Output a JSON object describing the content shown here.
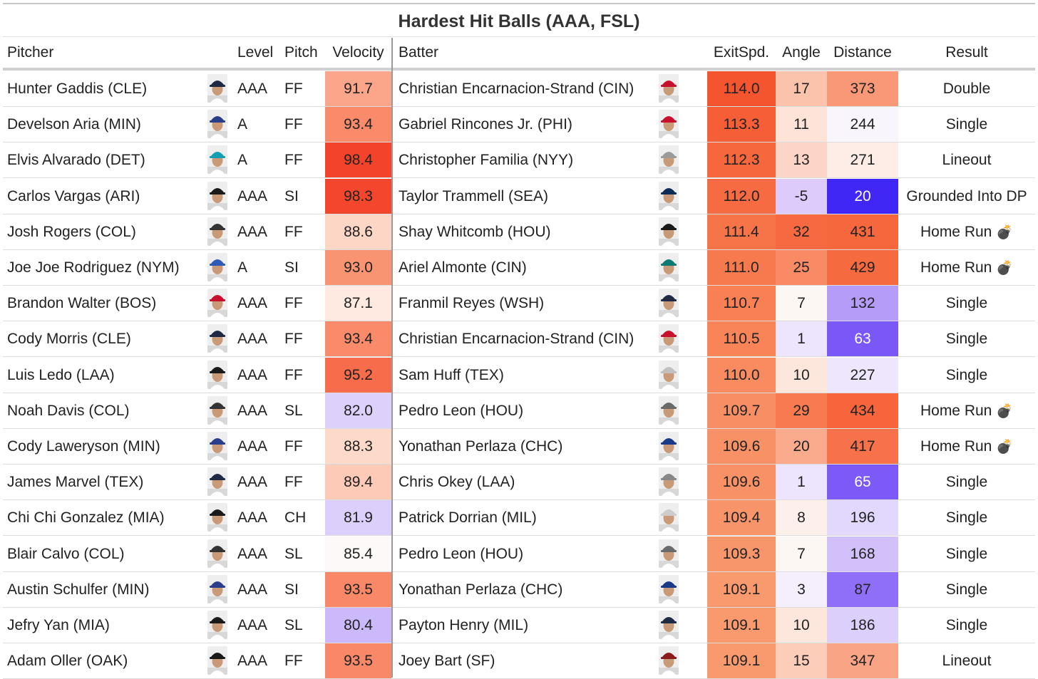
{
  "title": "Hardest Hit Balls (AAA, FSL)",
  "headers": {
    "pitcher": "Pitcher",
    "level": "Level",
    "pitch": "Pitch",
    "velocity": "Velocity",
    "batter": "Batter",
    "exitspd": "ExitSpd.",
    "angle": "Angle",
    "distance": "Distance",
    "result": "Result"
  },
  "colors": {
    "hot_max": "#f4442a",
    "cold_max": "#4127f5",
    "neutral": "#ffffff"
  },
  "rows": [
    {
      "pitcher": "Hunter Gaddis (CLE)",
      "level": "AAA",
      "pitch": "FF",
      "velocity": "91.7",
      "batter": "Christian Encarnacion-Strand (CIN)",
      "exitspd": "114.0",
      "angle": "17",
      "distance": "373",
      "result": "Double",
      "hr": false,
      "pcap": "#1e2a44",
      "bcap": "#c8102e",
      "velocity_color": "#fba68a",
      "exitspd_color": "#f4552e",
      "angle_color": "#fcc3ac",
      "distance_color": "#f99877",
      "distance_text": "#222"
    },
    {
      "pitcher": "Develson Aria (MIN)",
      "level": "A",
      "pitch": "FF",
      "velocity": "93.4",
      "batter": "Gabriel Rincones Jr. (PHI)",
      "exitspd": "113.3",
      "angle": "11",
      "distance": "244",
      "result": "Single",
      "hr": false,
      "pcap": "#2b3e8c",
      "bcap": "#c8102e",
      "velocity_color": "#f98a6a",
      "exitspd_color": "#f55e36",
      "angle_color": "#fde3d8",
      "distance_color": "#f8f6fc",
      "distance_text": "#222"
    },
    {
      "pitcher": "Elvis Alvarado (DET)",
      "level": "A",
      "pitch": "FF",
      "velocity": "98.4",
      "batter": "Christopher Familia (NYY)",
      "exitspd": "112.3",
      "angle": "13",
      "distance": "271",
      "result": "Lineout",
      "hr": false,
      "pcap": "#14a0b0",
      "bcap": "#9a9a9a",
      "velocity_color": "#f3442b",
      "exitspd_color": "#f6673e",
      "angle_color": "#fdd5c6",
      "distance_color": "#feede6",
      "distance_text": "#222"
    },
    {
      "pitcher": "Carlos Vargas (ARI)",
      "level": "AAA",
      "pitch": "SI",
      "velocity": "98.3",
      "batter": "Taylor Trammell (SEA)",
      "exitspd": "112.0",
      "angle": "-5",
      "distance": "20",
      "result": "Grounded Into DP",
      "hr": false,
      "pcap": "#1a1a1a",
      "bcap": "#0c2c56",
      "velocity_color": "#f4462c",
      "exitspd_color": "#f66b42",
      "angle_color": "#dccbfb",
      "distance_color": "#4127f5",
      "distance_text": "#ffffff"
    },
    {
      "pitcher": "Josh Rogers (COL)",
      "level": "AAA",
      "pitch": "FF",
      "velocity": "88.6",
      "batter": "Shay Whitcomb (HOU)",
      "exitspd": "111.4",
      "angle": "32",
      "distance": "431",
      "result": "Home Run",
      "hr": true,
      "pcap": "#333333",
      "bcap": "#1a1a1a",
      "velocity_color": "#fdd6c6",
      "exitspd_color": "#f77449",
      "angle_color": "#f76a41",
      "distance_color": "#f6673e",
      "distance_text": "#222"
    },
    {
      "pitcher": "Joe Joe Rodriguez (NYM)",
      "level": "A",
      "pitch": "SI",
      "velocity": "93.0",
      "batter": "Ariel Almonte (CIN)",
      "exitspd": "111.0",
      "angle": "25",
      "distance": "429",
      "result": "Home Run",
      "hr": true,
      "pcap": "#2c5cb8",
      "bcap": "#0d7a73",
      "velocity_color": "#f99473",
      "exitspd_color": "#f77a4e",
      "angle_color": "#f88b66",
      "distance_color": "#f66a40",
      "distance_text": "#222"
    },
    {
      "pitcher": "Brandon Walter (BOS)",
      "level": "AAA",
      "pitch": "FF",
      "velocity": "87.1",
      "batter": "Franmil Reyes (WSH)",
      "exitspd": "110.7",
      "angle": "7",
      "distance": "132",
      "result": "Single",
      "hr": false,
      "pcap": "#c8102e",
      "bcap": "#1f2a44",
      "velocity_color": "#feeae1",
      "exitspd_color": "#f88054",
      "angle_color": "#fdf7f4",
      "distance_color": "#b69cf9",
      "distance_text": "#222"
    },
    {
      "pitcher": "Cody Morris (CLE)",
      "level": "AAA",
      "pitch": "FF",
      "velocity": "93.4",
      "batter": "Christian Encarnacion-Strand (CIN)",
      "exitspd": "110.5",
      "angle": "1",
      "distance": "63",
      "result": "Single",
      "hr": false,
      "pcap": "#1e2a44",
      "bcap": "#c8102e",
      "velocity_color": "#f98a6a",
      "exitspd_color": "#f88458",
      "angle_color": "#ede4fd",
      "distance_color": "#7a58f7",
      "distance_text": "#ffffff"
    },
    {
      "pitcher": "Luis Ledo (LAA)",
      "level": "AAA",
      "pitch": "FF",
      "velocity": "95.2",
      "batter": "Sam Huff (TEX)",
      "exitspd": "110.0",
      "angle": "10",
      "distance": "227",
      "result": "Single",
      "hr": false,
      "pcap": "#1a1a1a",
      "bcap": "#c0c0c0",
      "velocity_color": "#f76c4a",
      "exitspd_color": "#f88c60",
      "angle_color": "#fde7dc",
      "distance_color": "#ede6fd",
      "distance_text": "#222"
    },
    {
      "pitcher": "Noah Davis (COL)",
      "level": "AAA",
      "pitch": "SL",
      "velocity": "82.0",
      "batter": "Pedro Leon (HOU)",
      "exitspd": "109.7",
      "angle": "29",
      "distance": "434",
      "result": "Home Run",
      "hr": true,
      "pcap": "#333333",
      "bcap": "#6b6b6b",
      "velocity_color": "#ddd0fb",
      "exitspd_color": "#f88f64",
      "angle_color": "#f77a50",
      "distance_color": "#f6653c",
      "distance_text": "#222"
    },
    {
      "pitcher": "Cody Laweryson (MIN)",
      "level": "AAA",
      "pitch": "FF",
      "velocity": "88.3",
      "batter": "Yonathan Perlaza (CHC)",
      "exitspd": "109.6",
      "angle": "20",
      "distance": "417",
      "result": "Home Run",
      "hr": true,
      "pcap": "#2b3e8c",
      "bcap": "#1b3a8a",
      "velocity_color": "#fdd9ca",
      "exitspd_color": "#f89166",
      "angle_color": "#faab8e",
      "distance_color": "#f7714a",
      "distance_text": "#222"
    },
    {
      "pitcher": "James Marvel (TEX)",
      "level": "AAA",
      "pitch": "FF",
      "velocity": "89.4",
      "batter": "Chris Okey (LAA)",
      "exitspd": "109.6",
      "angle": "1",
      "distance": "65",
      "result": "Single",
      "hr": false,
      "pcap": "#1f2a44",
      "bcap": "#888888",
      "velocity_color": "#fccab7",
      "exitspd_color": "#f89166",
      "angle_color": "#ede4fd",
      "distance_color": "#7c5af7",
      "distance_text": "#ffffff"
    },
    {
      "pitcher": "Chi Chi Gonzalez (MIA)",
      "level": "AAA",
      "pitch": "CH",
      "velocity": "81.9",
      "batter": "Patrick Dorrian (MIL)",
      "exitspd": "109.4",
      "angle": "8",
      "distance": "196",
      "result": "Single",
      "hr": false,
      "pcap": "#1a1a1a",
      "bcap": "#cccccc",
      "velocity_color": "#dccffb",
      "exitspd_color": "#f89469",
      "angle_color": "#fdf0ea",
      "distance_color": "#e2d7fc",
      "distance_text": "#222"
    },
    {
      "pitcher": "Blair Calvo (COL)",
      "level": "AAA",
      "pitch": "SL",
      "velocity": "85.4",
      "batter": "Pedro Leon (HOU)",
      "exitspd": "109.3",
      "angle": "7",
      "distance": "168",
      "result": "Single",
      "hr": false,
      "pcap": "#333333",
      "bcap": "#6b6b6b",
      "velocity_color": "#fdf9f8",
      "exitspd_color": "#f8966b",
      "angle_color": "#fdf7f4",
      "distance_color": "#d2c0fb",
      "distance_text": "#222"
    },
    {
      "pitcher": "Austin Schulfer (MIN)",
      "level": "AAA",
      "pitch": "SI",
      "velocity": "93.5",
      "batter": "Yonathan Perlaza (CHC)",
      "exitspd": "109.1",
      "angle": "3",
      "distance": "87",
      "result": "Single",
      "hr": false,
      "pcap": "#2b3e8c",
      "bcap": "#1b3a8a",
      "velocity_color": "#f98868",
      "exitspd_color": "#f9996e",
      "angle_color": "#f4eefd",
      "distance_color": "#906ff8",
      "distance_text": "#222"
    },
    {
      "pitcher": "Jefry Yan (MIA)",
      "level": "AAA",
      "pitch": "SL",
      "velocity": "80.4",
      "batter": "Payton Henry (MIL)",
      "exitspd": "109.1",
      "angle": "10",
      "distance": "186",
      "result": "Single",
      "hr": false,
      "pcap": "#1a1a1a",
      "bcap": "#1f2a44",
      "velocity_color": "#cbb9fb",
      "exitspd_color": "#f9996e",
      "angle_color": "#fde7dc",
      "distance_color": "#dccffb",
      "distance_text": "#222"
    },
    {
      "pitcher": "Adam Oller (OAK)",
      "level": "AAA",
      "pitch": "FF",
      "velocity": "93.5",
      "batter": "Joey Bart (SF)",
      "exitspd": "109.1",
      "angle": "15",
      "distance": "347",
      "result": "Lineout",
      "hr": false,
      "pcap": "#1a1a1a",
      "bcap": "#8a1c1c",
      "velocity_color": "#f98868",
      "exitspd_color": "#f9996e",
      "angle_color": "#fccdb9",
      "distance_color": "#faa486",
      "distance_text": "#222"
    }
  ]
}
